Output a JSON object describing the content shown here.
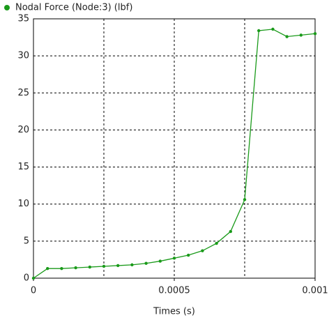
{
  "chart_data": {
    "type": "line",
    "legend": "Nodal Force (Node:3) (lbf)",
    "x_label": "Times (s)",
    "x": [
      0,
      5e-05,
      0.0001,
      0.00015,
      0.0002,
      0.00025,
      0.0003,
      0.00035,
      0.0004,
      0.00045,
      0.0005,
      0.00055,
      0.0006,
      0.00065,
      0.0007,
      0.00075,
      0.0008,
      0.00085,
      0.0009,
      0.00095,
      0.001
    ],
    "values": [
      0,
      1.3,
      1.3,
      1.4,
      1.5,
      1.6,
      1.7,
      1.8,
      2.0,
      2.3,
      2.7,
      3.1,
      3.7,
      4.7,
      6.3,
      10.6,
      33.4,
      33.6,
      32.6,
      32.8,
      33.0
    ],
    "color": "#1a9a1a",
    "xlim": [
      0,
      0.001
    ],
    "xticks": [
      0,
      0.0005,
      0.001
    ],
    "xgrid": [
      0.00025,
      0.0005,
      0.00075
    ],
    "ylim": [
      0,
      35
    ],
    "yticks": [
      0,
      5,
      10,
      15,
      20,
      25,
      30,
      35
    ],
    "grid": true
  }
}
